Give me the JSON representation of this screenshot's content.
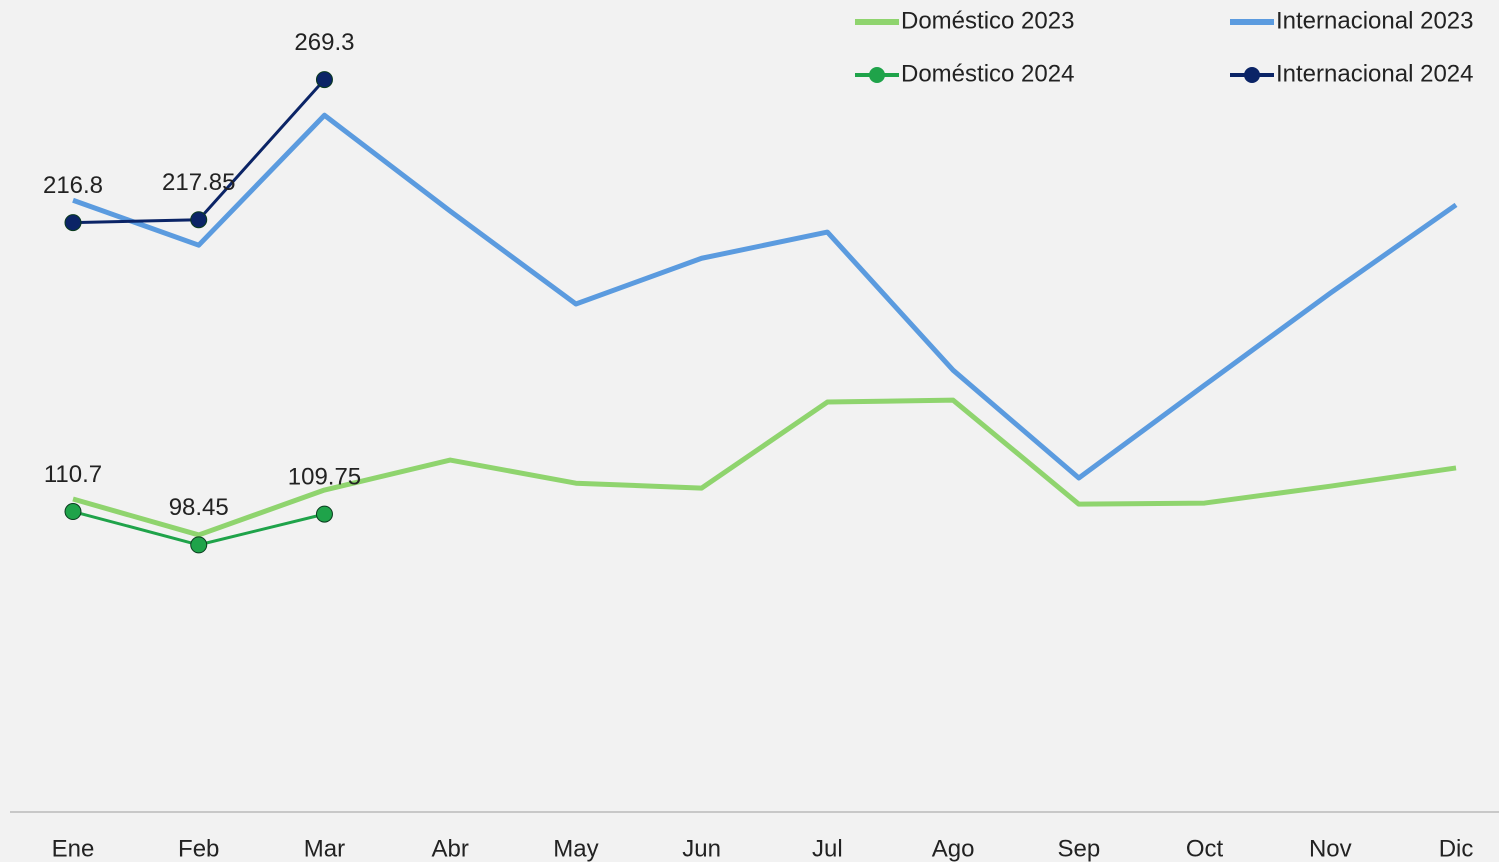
{
  "chart_data": {
    "type": "line",
    "categories": [
      "Ene",
      "Feb",
      "Mar",
      "Abr",
      "May",
      "Jun",
      "Jul",
      "Ago",
      "Sep",
      "Oct",
      "Nov",
      "Dic"
    ],
    "series": [
      {
        "name": "Doméstico 2023",
        "color": "#8fd46e",
        "width": 5,
        "marker": false,
        "labels": false,
        "values": [
          115.3,
          102.1,
          118.6,
          129.6,
          121.1,
          119.3,
          150.9,
          151.6,
          113.4,
          113.8,
          120.0,
          126.7
        ]
      },
      {
        "name": "Internacional 2023",
        "color": "#5b9bdf",
        "width": 5,
        "marker": false,
        "labels": false,
        "values": [
          225.0,
          208.5,
          256.2,
          221.0,
          186.9,
          203.7,
          213.3,
          162.6,
          123.0,
          157.1,
          190.9,
          223.3
        ]
      },
      {
        "name": "Doméstico 2024",
        "color": "#1fa34a",
        "width": 3,
        "marker": true,
        "labels": true,
        "values": [
          110.7,
          98.45,
          109.75,
          null,
          null,
          null,
          null,
          null,
          null,
          null,
          null,
          null
        ]
      },
      {
        "name": "Internacional 2024",
        "color": "#0b2466",
        "width": 3,
        "marker": true,
        "labels": true,
        "values": [
          216.8,
          217.85,
          269.3,
          null,
          null,
          null,
          null,
          null,
          null,
          null,
          null,
          null
        ]
      }
    ],
    "ylim": [
      0,
      300
    ],
    "grid": false,
    "legend": "upper right"
  }
}
